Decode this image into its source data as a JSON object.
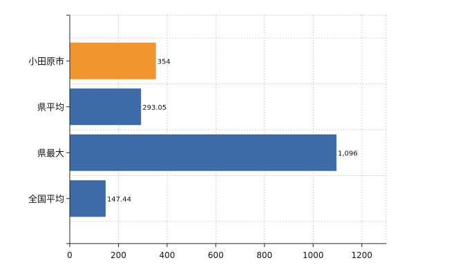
{
  "chart_data": {
    "type": "bar",
    "orientation": "horizontal",
    "categories": [
      "小田原市",
      "県平均",
      "県最大",
      "全国平均"
    ],
    "values": [
      354,
      293.05,
      1096,
      147.44
    ],
    "value_labels": [
      "354",
      "293.05",
      "1,096",
      "147.44"
    ],
    "xlim": [
      0,
      1300
    ],
    "x_ticks": [
      0,
      200,
      400,
      600,
      800,
      1000,
      1200
    ],
    "x_tick_labels": [
      "0",
      "200",
      "400",
      "600",
      "800",
      "1000",
      "1200"
    ],
    "grid": true,
    "colors": {
      "highlight": "#F0952E",
      "default": "#3D6BA8",
      "highlight_category": "小田原市"
    }
  }
}
